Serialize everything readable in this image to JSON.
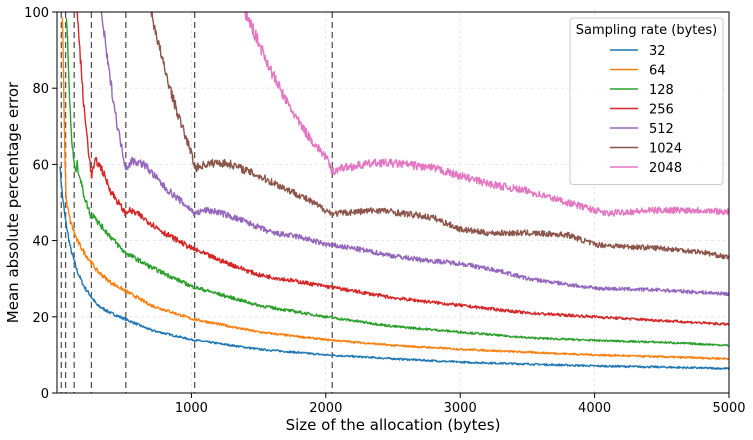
{
  "chart_data": {
    "type": "line",
    "title": "",
    "xlabel": "Size of the allocation (bytes)",
    "ylabel": "Mean absolute percentage error",
    "xlim": [
      0,
      5000
    ],
    "ylim": [
      0,
      100
    ],
    "xticks": [
      1000,
      2000,
      3000,
      4000,
      5000
    ],
    "yticks": [
      0,
      20,
      40,
      60,
      80,
      100
    ],
    "grid": true,
    "legend": {
      "title": "Sampling rate (bytes)",
      "placement": "top-right"
    },
    "vertical_lines": [
      32,
      64,
      128,
      256,
      512,
      1024,
      2048
    ],
    "series": [
      {
        "name": "32",
        "color": "#1f77b4",
        "x": [
          20,
          40,
          60,
          100,
          150,
          200,
          300,
          400,
          500,
          700,
          1000,
          1500,
          2000,
          2500,
          3000,
          3500,
          4000,
          4500,
          5000
        ],
        "y": [
          60,
          52,
          46,
          38,
          32,
          28,
          23,
          21,
          19.5,
          16.5,
          14,
          11.5,
          10,
          9,
          8.1,
          7.6,
          7.1,
          6.8,
          6.4
        ]
      },
      {
        "name": "64",
        "color": "#ff7f0e",
        "x": [
          40,
          60,
          70,
          100,
          150,
          200,
          300,
          400,
          500,
          700,
          1000,
          1500,
          2000,
          2500,
          3000,
          3500,
          4000,
          4500,
          5000
        ],
        "y": [
          100,
          60,
          50,
          45,
          40,
          37,
          32,
          29,
          27,
          23,
          19.5,
          16,
          14,
          12.5,
          11.5,
          10.7,
          10,
          9.5,
          9
        ]
      },
      {
        "name": "128",
        "color": "#2ca02c",
        "x": [
          70,
          90,
          110,
          128,
          135,
          150,
          200,
          256,
          280,
          300,
          400,
          500,
          700,
          1000,
          1500,
          2000,
          2500,
          3000,
          3500,
          4000,
          4500,
          5000
        ],
        "y": [
          100,
          80,
          66,
          60,
          58,
          60,
          52,
          46,
          47,
          45,
          41,
          37,
          33,
          28,
          23,
          20,
          17.5,
          16,
          14.5,
          13.8,
          13.3,
          12.5
        ]
      },
      {
        "name": "256",
        "color": "#d62728",
        "x": [
          150,
          200,
          240,
          256,
          270,
          290,
          330,
          400,
          512,
          530,
          600,
          800,
          1000,
          1200,
          1500,
          2000,
          2500,
          3000,
          3500,
          4000,
          4500,
          5000
        ],
        "y": [
          100,
          75,
          62,
          57,
          59,
          61,
          59,
          53,
          47,
          48,
          47,
          42,
          38,
          35,
          31,
          28,
          25,
          23,
          21,
          20,
          19,
          18
        ]
      },
      {
        "name": "512",
        "color": "#9467bd",
        "x": [
          330,
          380,
          450,
          512,
          560,
          650,
          800,
          1000,
          1024,
          1100,
          1200,
          1400,
          1600,
          1800,
          2000,
          2200,
          2500,
          2700,
          3000,
          3300,
          3500,
          4000,
          4500,
          5000
        ],
        "y": [
          100,
          86,
          70,
          59,
          61,
          60,
          54,
          48,
          47,
          48,
          47.5,
          45,
          42,
          41,
          39,
          38,
          36,
          35,
          34,
          32,
          30,
          27.5,
          27,
          26
        ]
      },
      {
        "name": "1024",
        "color": "#8c564b",
        "x": [
          700,
          800,
          900,
          1000,
          1024,
          1100,
          1200,
          1300,
          1500,
          1800,
          2000,
          2048,
          2200,
          2400,
          2600,
          2800,
          3000,
          3200,
          3500,
          3800,
          4000,
          4200,
          4500,
          4800,
          5000
        ],
        "y": [
          100,
          85,
          73,
          63,
          59,
          60,
          60.5,
          60,
          57,
          52,
          48,
          47,
          47.5,
          48,
          47,
          46,
          43,
          42,
          42,
          41.5,
          39,
          38.5,
          38,
          37,
          35.5
        ]
      },
      {
        "name": "2048",
        "color": "#e377c2",
        "x": [
          1400,
          1500,
          1600,
          1700,
          1800,
          1900,
          2000,
          2048,
          2100,
          2200,
          2400,
          2600,
          2800,
          3000,
          3200,
          3500,
          3800,
          4000,
          4100,
          4200,
          4500,
          4800,
          5000
        ],
        "y": [
          100,
          92,
          84,
          77,
          71,
          66,
          62,
          58,
          59,
          59.5,
          60.5,
          60,
          59,
          57,
          55,
          53,
          50,
          48,
          47,
          47.5,
          48,
          48,
          47.5
        ]
      }
    ]
  }
}
